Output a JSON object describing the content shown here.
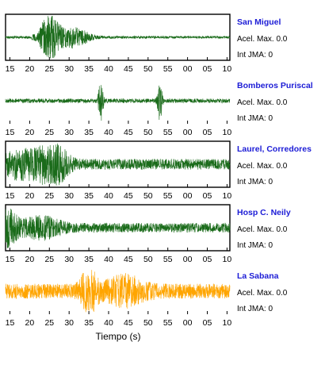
{
  "chart_data": {
    "type": "line",
    "xlabel": "Tiempo (s)",
    "tick_labels": [
      "15",
      "20",
      "25",
      "30",
      "35",
      "40",
      "45",
      "50",
      "55",
      "00",
      "05",
      "10"
    ],
    "stations": [
      {
        "name": "San Miguel",
        "acel_label": "Acel. Max. 0.0",
        "jma_label": "Int JMA: 0",
        "color": "#1a6b1a",
        "frame": true,
        "bottom_ticks": true,
        "bursts": [
          {
            "center": 25,
            "width": 2.6,
            "amp": 1.0
          },
          {
            "center": 31,
            "width": 4.0,
            "amp": 0.45
          }
        ],
        "base": 0.06,
        "tail": 0.0
      },
      {
        "name": "Bomberos Puriscal",
        "acel_label": "Acel. Max. 0.0",
        "jma_label": "Int JMA: 0",
        "color": "#1a6b1a",
        "frame": false,
        "bottom_ticks": true,
        "bursts": [
          {
            "center": 38,
            "width": 0.6,
            "amp": 1.0
          },
          {
            "center": 53,
            "width": 0.6,
            "amp": 0.95
          }
        ],
        "base": 0.1,
        "tail": 0.0
      },
      {
        "name": "Laurel, Corredores",
        "acel_label": "Acel. Max. 0.0",
        "jma_label": "Int JMA: 0",
        "color": "#1a6b1a",
        "frame": true,
        "bottom_ticks": true,
        "bursts": [
          {
            "center": 18,
            "width": 6.0,
            "amp": 0.55
          },
          {
            "center": 26,
            "width": 3.5,
            "amp": 0.9
          }
        ],
        "base": 0.25,
        "tail": 0.0
      },
      {
        "name": "Hosp C. Neily",
        "acel_label": "Acel. Max. 0.0",
        "jma_label": "Int JMA: 0",
        "color": "#1a6b1a",
        "frame": true,
        "bottom_ticks": true,
        "bursts": [
          {
            "center": 14,
            "width": 3.0,
            "amp": 0.75
          },
          {
            "center": 23,
            "width": 5.0,
            "amp": 0.4
          }
        ],
        "base": 0.22,
        "tail": 0.0
      },
      {
        "name": "La Sabana",
        "acel_label": "Acel. Max. 0.0",
        "jma_label": "Int JMA: 0",
        "color": "#ffa500",
        "frame": false,
        "bottom_ticks": true,
        "bursts": [
          {
            "center": 35,
            "width": 2.0,
            "amp": 1.0
          },
          {
            "center": 44,
            "width": 5.0,
            "amp": 0.5
          }
        ],
        "base": 0.35,
        "tail": 0.0
      }
    ]
  }
}
